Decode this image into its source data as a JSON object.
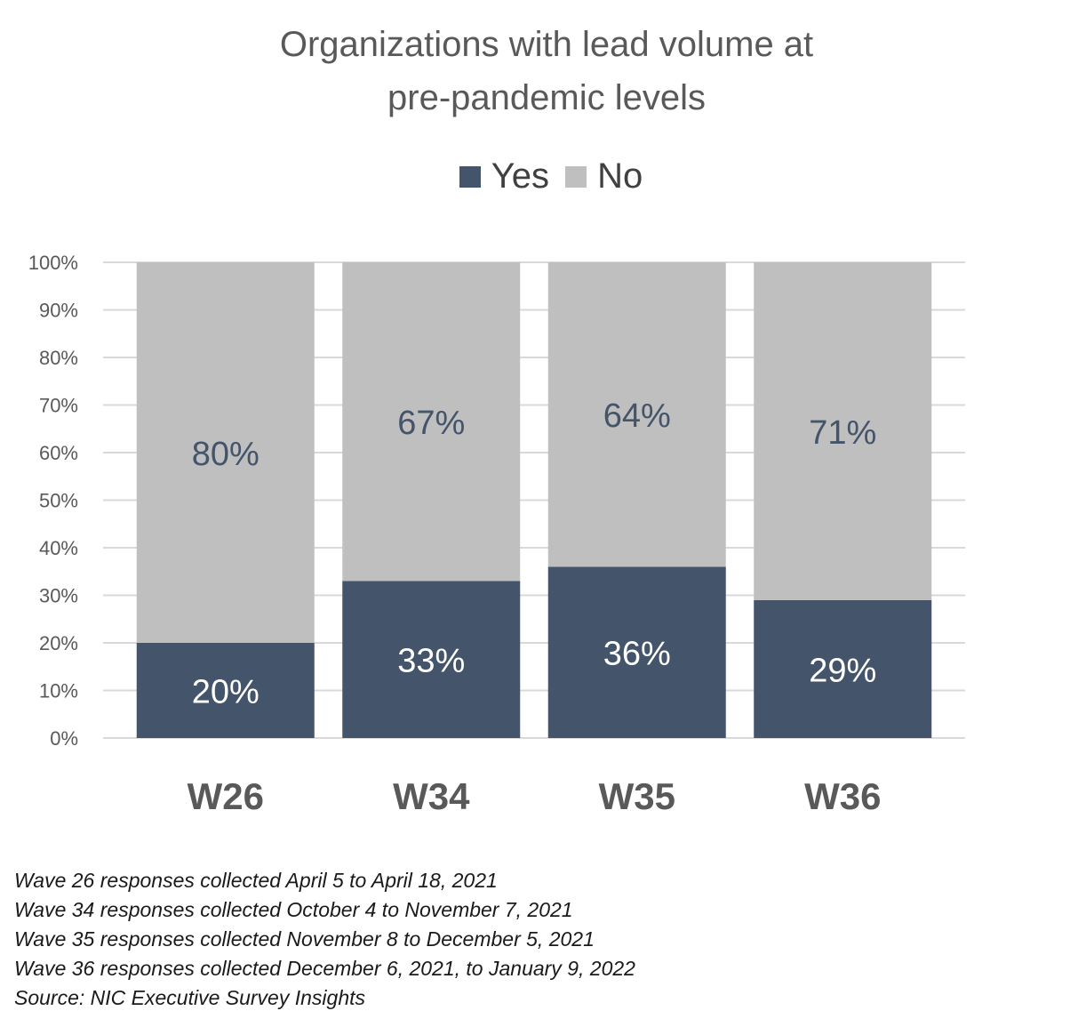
{
  "chart_data": {
    "type": "bar",
    "stacked": true,
    "title": "Organizations with lead volume at pre-pandemic levels",
    "title_lines": [
      "Organizations with lead volume at",
      "pre-pandemic levels"
    ],
    "categories": [
      "W26",
      "W34",
      "W35",
      "W36"
    ],
    "series": [
      {
        "name": "Yes",
        "color": "#44546a",
        "values": [
          20,
          33,
          36,
          29
        ],
        "data_labels": [
          "20%",
          "33%",
          "36%",
          "29%"
        ]
      },
      {
        "name": "No",
        "color": "#bfbfbf",
        "values": [
          80,
          67,
          64,
          71
        ],
        "data_labels": [
          "80%",
          "67%",
          "64%",
          "71%"
        ]
      }
    ],
    "y_ticks": [
      "0%",
      "10%",
      "20%",
      "30%",
      "40%",
      "50%",
      "60%",
      "70%",
      "80%",
      "90%",
      "100%"
    ],
    "ylim": [
      0,
      100
    ],
    "grid": true,
    "legend_position": "top"
  },
  "notes": [
    "Wave 26 responses collected April 5 to April 18, 2021",
    "Wave 34 responses collected October 4 to November 7, 2021",
    "Wave 35 responses collected November 8 to December 5, 2021",
    "Wave 36 responses collected December 6, 2021, to January 9, 2022",
    "Source: NIC Executive Survey Insights"
  ]
}
